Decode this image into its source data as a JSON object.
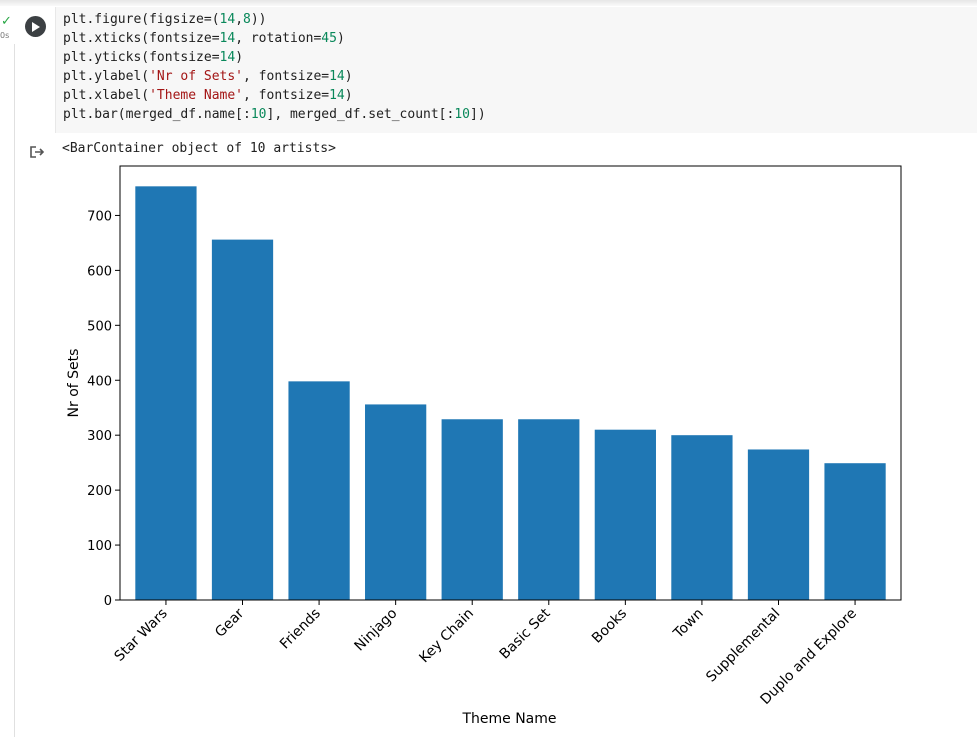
{
  "cell": {
    "exec_status": "✓",
    "exec_time": "0s",
    "code_lines": [
      [
        {
          "t": "plt.figure(figsize=(",
          "c": ""
        },
        {
          "t": "14",
          "c": "num"
        },
        {
          "t": ",",
          "c": ""
        },
        {
          "t": "8",
          "c": "num"
        },
        {
          "t": "))",
          "c": ""
        }
      ],
      [
        {
          "t": "plt.xticks(fontsize=",
          "c": ""
        },
        {
          "t": "14",
          "c": "num"
        },
        {
          "t": ", rotation=",
          "c": ""
        },
        {
          "t": "45",
          "c": "num"
        },
        {
          "t": ")",
          "c": ""
        }
      ],
      [
        {
          "t": "plt.yticks(fontsize=",
          "c": ""
        },
        {
          "t": "14",
          "c": "num"
        },
        {
          "t": ")",
          "c": ""
        }
      ],
      [
        {
          "t": "plt.ylabel(",
          "c": ""
        },
        {
          "t": "'Nr of Sets'",
          "c": "str"
        },
        {
          "t": ", fontsize=",
          "c": ""
        },
        {
          "t": "14",
          "c": "num"
        },
        {
          "t": ")",
          "c": ""
        }
      ],
      [
        {
          "t": "plt.xlabel(",
          "c": ""
        },
        {
          "t": "'Theme Name'",
          "c": "str"
        },
        {
          "t": ", fontsize=",
          "c": ""
        },
        {
          "t": "14",
          "c": "num"
        },
        {
          "t": ")",
          "c": ""
        }
      ],
      [
        {
          "t": "plt.bar(merged_df.name[:",
          "c": ""
        },
        {
          "t": "10",
          "c": "num"
        },
        {
          "t": "], merged_df.set_count[:",
          "c": ""
        },
        {
          "t": "10",
          "c": "num"
        },
        {
          "t": "])",
          "c": ""
        }
      ]
    ]
  },
  "output": {
    "text": "<BarContainer object of 10 artists>"
  },
  "chart_data": {
    "type": "bar",
    "categories": [
      "Star Wars",
      "Gear",
      "Friends",
      "Ninjago",
      "Key Chain",
      "Basic Set",
      "Books",
      "Town",
      "Supplemental",
      "Duplo and Explore"
    ],
    "values": [
      753,
      656,
      398,
      356,
      329,
      329,
      310,
      300,
      274,
      249
    ],
    "xlabel": "Theme Name",
    "ylabel": "Nr of Sets",
    "ylim": [
      0,
      790
    ],
    "yticks": [
      0,
      100,
      200,
      300,
      400,
      500,
      600,
      700
    ],
    "bar_color": "#1f77b4",
    "grid": false
  }
}
